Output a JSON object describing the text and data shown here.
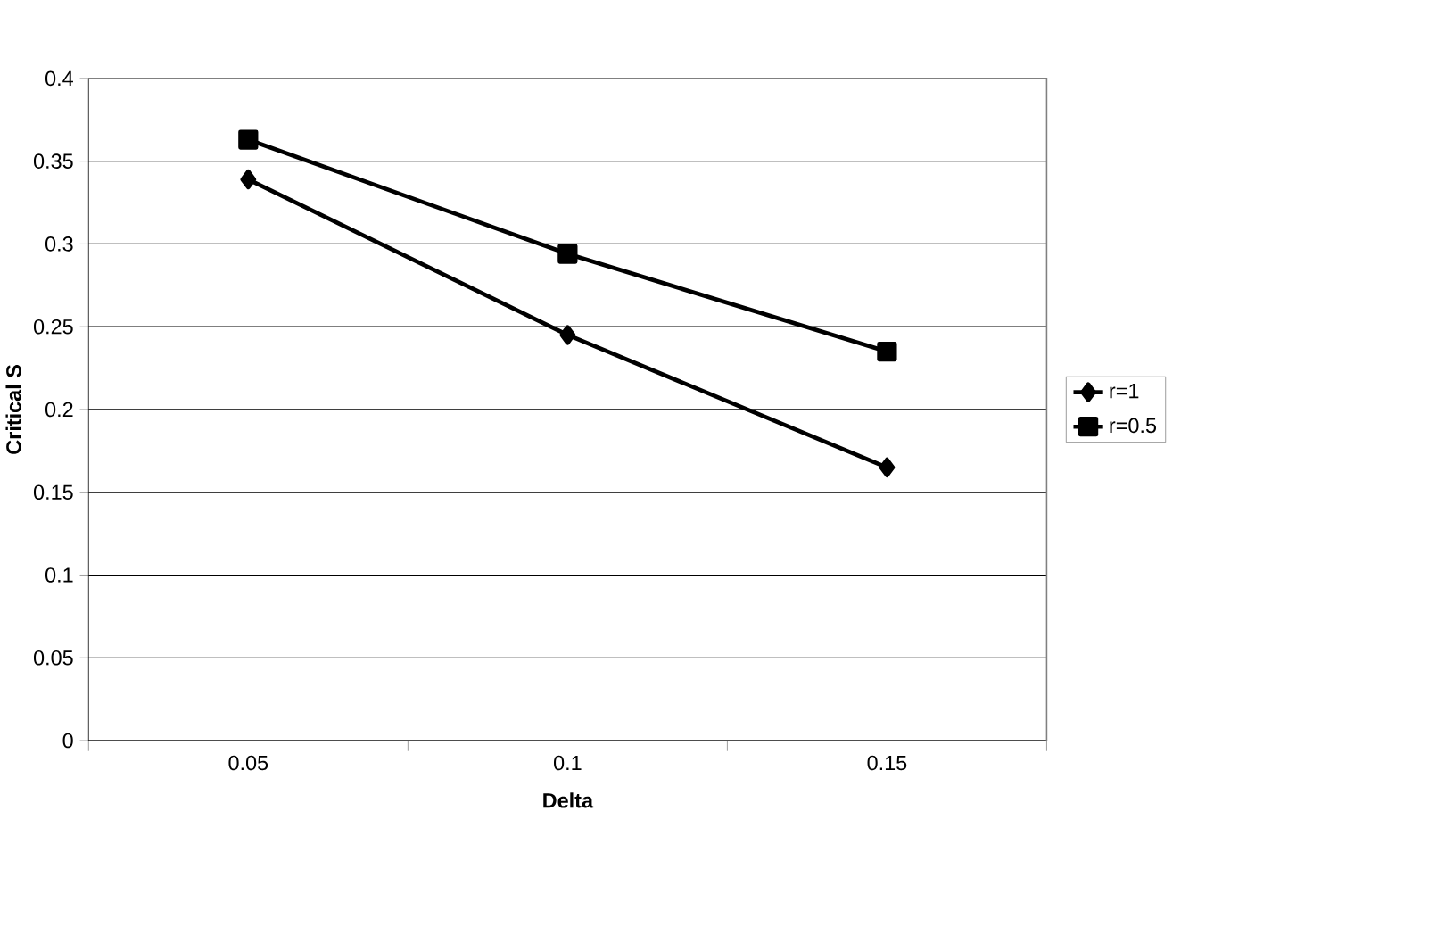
{
  "chart_data": {
    "type": "line",
    "xlabel": "Delta",
    "ylabel": "Critical S",
    "categories": [
      "0.05",
      "0.1",
      "0.15"
    ],
    "series": [
      {
        "name": "r=1",
        "color": "#000000",
        "marker": "diamond",
        "values": [
          0.339,
          0.245,
          0.165
        ]
      },
      {
        "name": "r=0.5",
        "color": "#000000",
        "marker": "square",
        "values": [
          0.363,
          0.294,
          0.235
        ]
      }
    ],
    "ylim": [
      0,
      0.4
    ],
    "yticks": [
      0,
      0.05,
      0.1,
      0.15,
      0.2,
      0.25,
      0.3,
      0.35,
      0.4
    ],
    "grid": "y",
    "legend": "right",
    "line_style": "solid"
  }
}
